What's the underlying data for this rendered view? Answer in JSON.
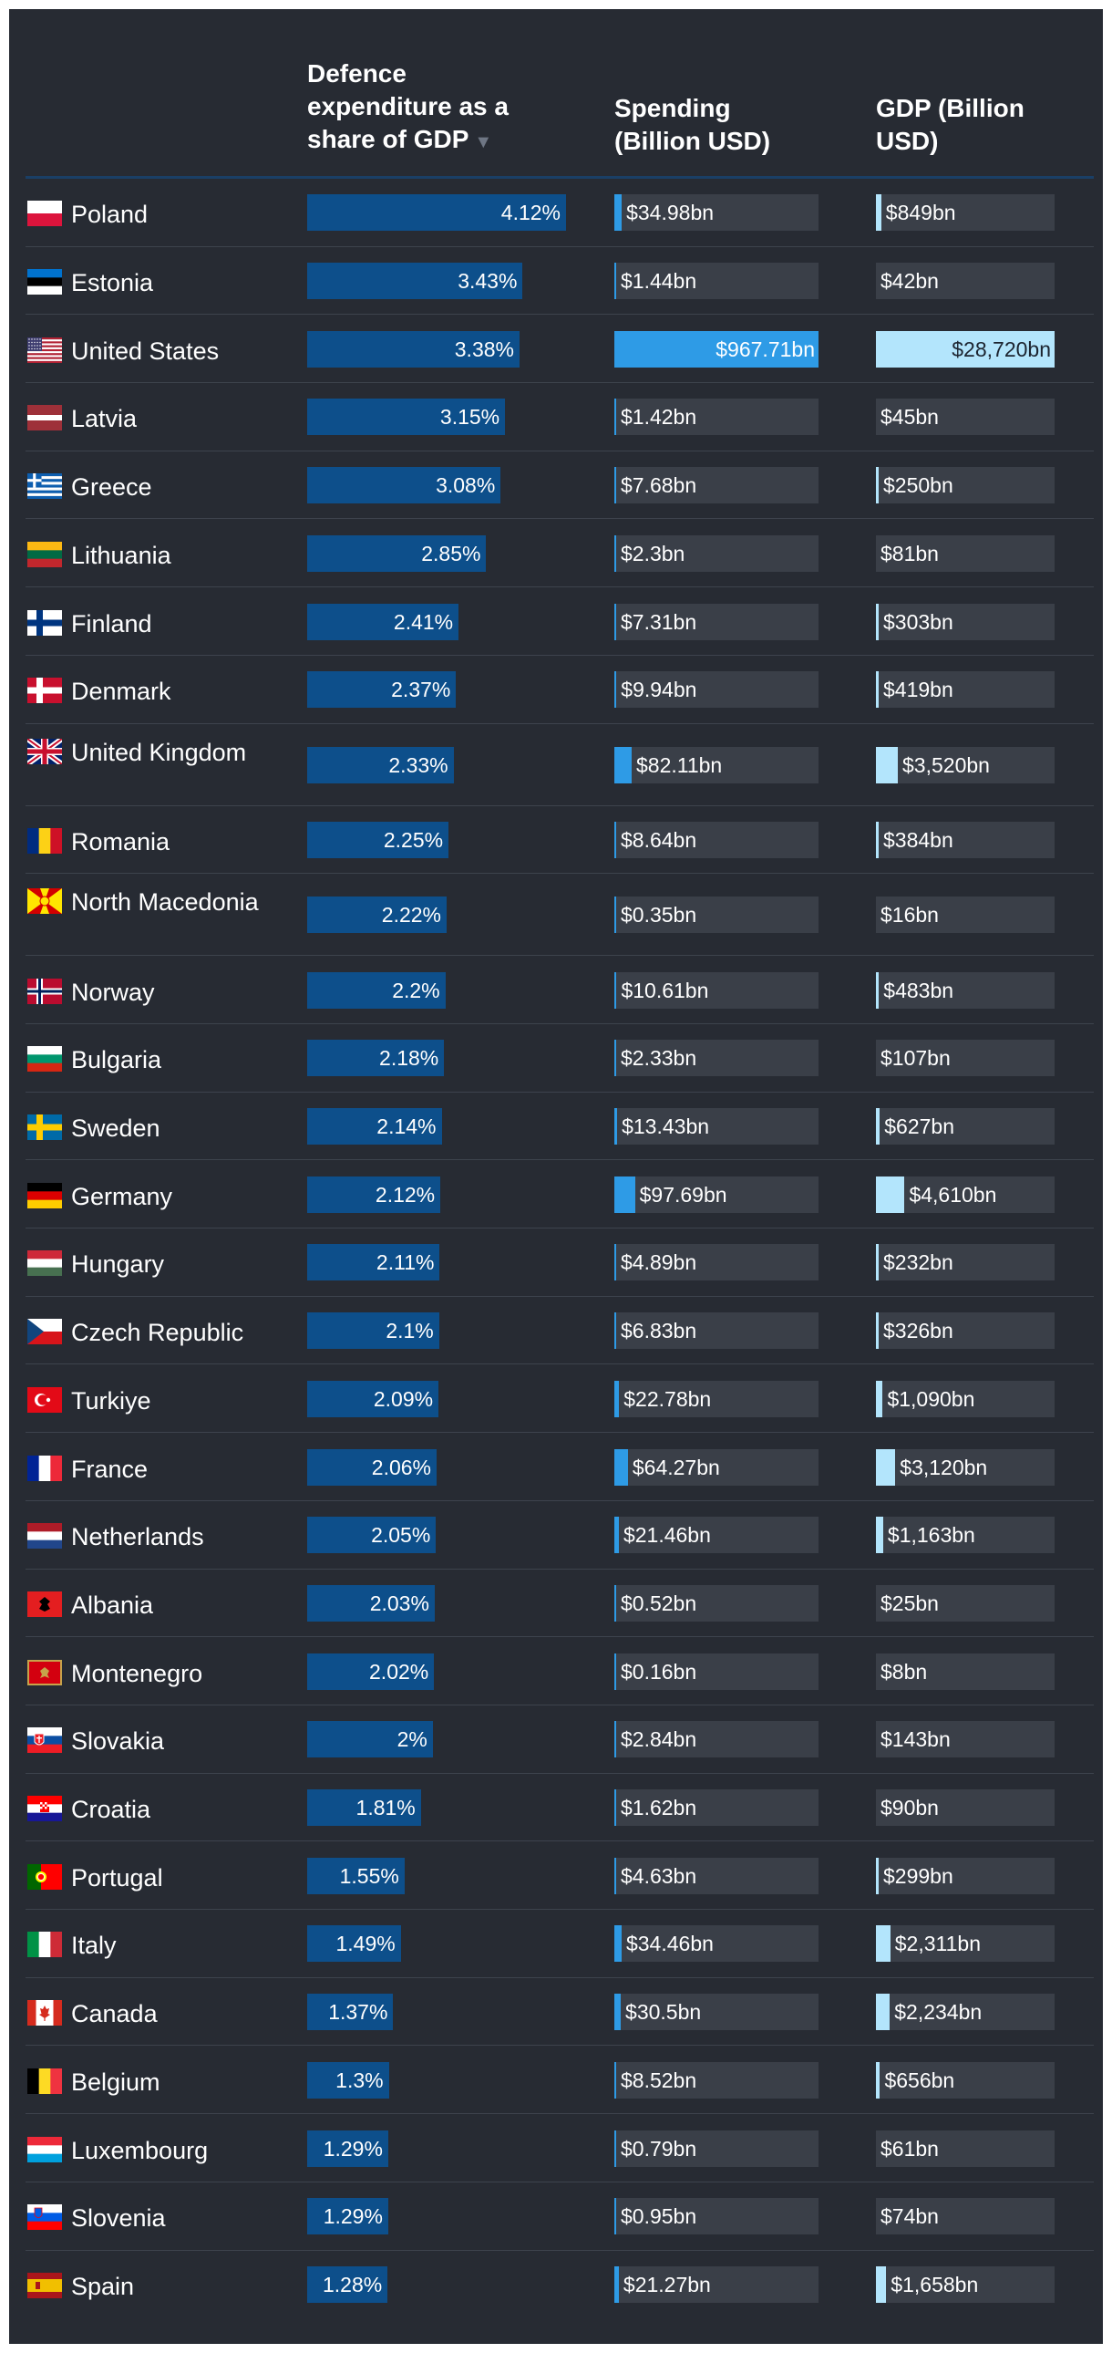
{
  "headers": {
    "gdp_share": "Defence expenditure as a share of GDP",
    "sort_icon": "sort-descending-icon",
    "spending": "Spending (Billion USD)",
    "gdp": "GDP (Billion USD)"
  },
  "colors": {
    "background": "#272b33",
    "share_bar": "#0d4f8b",
    "spending_bar": "#2e9be6",
    "gdp_bar": "#b3e5fc",
    "track": "#3a3f48"
  },
  "chart_data": {
    "type": "table",
    "columns": [
      "Defence expenditure as a share of GDP",
      "Spending (Billion USD)",
      "GDP (Billion USD)"
    ],
    "rows": [
      {
        "country": "Poland",
        "flag": "flag-poland-icon",
        "share_label": "4.12%",
        "share": 4.12,
        "spending_label": "$34.98bn",
        "spending": 34.98,
        "gdp_label": "$849bn",
        "gdp": 849
      },
      {
        "country": "Estonia",
        "flag": "flag-estonia-icon",
        "share_label": "3.43%",
        "share": 3.43,
        "spending_label": "$1.44bn",
        "spending": 1.44,
        "gdp_label": "$42bn",
        "gdp": 42
      },
      {
        "country": "United States",
        "flag": "flag-united-states-icon",
        "share_label": "3.38%",
        "share": 3.38,
        "spending_label": "$967.71bn",
        "spending": 967.71,
        "gdp_label": "$28,720bn",
        "gdp": 28720
      },
      {
        "country": "Latvia",
        "flag": "flag-latvia-icon",
        "share_label": "3.15%",
        "share": 3.15,
        "spending_label": "$1.42bn",
        "spending": 1.42,
        "gdp_label": "$45bn",
        "gdp": 45
      },
      {
        "country": "Greece",
        "flag": "flag-greece-icon",
        "share_label": "3.08%",
        "share": 3.08,
        "spending_label": "$7.68bn",
        "spending": 7.68,
        "gdp_label": "$250bn",
        "gdp": 250
      },
      {
        "country": "Lithuania",
        "flag": "flag-lithuania-icon",
        "share_label": "2.85%",
        "share": 2.85,
        "spending_label": "$2.3bn",
        "spending": 2.3,
        "gdp_label": "$81bn",
        "gdp": 81
      },
      {
        "country": "Finland",
        "flag": "flag-finland-icon",
        "share_label": "2.41%",
        "share": 2.41,
        "spending_label": "$7.31bn",
        "spending": 7.31,
        "gdp_label": "$303bn",
        "gdp": 303
      },
      {
        "country": "Denmark",
        "flag": "flag-denmark-icon",
        "share_label": "2.37%",
        "share": 2.37,
        "spending_label": "$9.94bn",
        "spending": 9.94,
        "gdp_label": "$419bn",
        "gdp": 419
      },
      {
        "country": "United Kingdom",
        "flag": "flag-united-kingdom-icon",
        "share_label": "2.33%",
        "share": 2.33,
        "spending_label": "$82.11bn",
        "spending": 82.11,
        "gdp_label": "$3,520bn",
        "gdp": 3520
      },
      {
        "country": "Romania",
        "flag": "flag-romania-icon",
        "share_label": "2.25%",
        "share": 2.25,
        "spending_label": "$8.64bn",
        "spending": 8.64,
        "gdp_label": "$384bn",
        "gdp": 384
      },
      {
        "country": "North Macedonia",
        "flag": "flag-north-macedonia-icon",
        "share_label": "2.22%",
        "share": 2.22,
        "spending_label": "$0.35bn",
        "spending": 0.35,
        "gdp_label": "$16bn",
        "gdp": 16
      },
      {
        "country": "Norway",
        "flag": "flag-norway-icon",
        "share_label": "2.2%",
        "share": 2.2,
        "spending_label": "$10.61bn",
        "spending": 10.61,
        "gdp_label": "$483bn",
        "gdp": 483
      },
      {
        "country": "Bulgaria",
        "flag": "flag-bulgaria-icon",
        "share_label": "2.18%",
        "share": 2.18,
        "spending_label": "$2.33bn",
        "spending": 2.33,
        "gdp_label": "$107bn",
        "gdp": 107
      },
      {
        "country": "Sweden",
        "flag": "flag-sweden-icon",
        "share_label": "2.14%",
        "share": 2.14,
        "spending_label": "$13.43bn",
        "spending": 13.43,
        "gdp_label": "$627bn",
        "gdp": 627
      },
      {
        "country": "Germany",
        "flag": "flag-germany-icon",
        "share_label": "2.12%",
        "share": 2.12,
        "spending_label": "$97.69bn",
        "spending": 97.69,
        "gdp_label": "$4,610bn",
        "gdp": 4610
      },
      {
        "country": "Hungary",
        "flag": "flag-hungary-icon",
        "share_label": "2.11%",
        "share": 2.11,
        "spending_label": "$4.89bn",
        "spending": 4.89,
        "gdp_label": "$232bn",
        "gdp": 232
      },
      {
        "country": "Czech Republic",
        "flag": "flag-czech-republic-icon",
        "share_label": "2.1%",
        "share": 2.1,
        "spending_label": "$6.83bn",
        "spending": 6.83,
        "gdp_label": "$326bn",
        "gdp": 326
      },
      {
        "country": "Turkiye",
        "flag": "flag-turkiye-icon",
        "share_label": "2.09%",
        "share": 2.09,
        "spending_label": "$22.78bn",
        "spending": 22.78,
        "gdp_label": "$1,090bn",
        "gdp": 1090
      },
      {
        "country": "France",
        "flag": "flag-france-icon",
        "share_label": "2.06%",
        "share": 2.06,
        "spending_label": "$64.27bn",
        "spending": 64.27,
        "gdp_label": "$3,120bn",
        "gdp": 3120
      },
      {
        "country": "Netherlands",
        "flag": "flag-netherlands-icon",
        "share_label": "2.05%",
        "share": 2.05,
        "spending_label": "$21.46bn",
        "spending": 21.46,
        "gdp_label": "$1,163bn",
        "gdp": 1163
      },
      {
        "country": "Albania",
        "flag": "flag-albania-icon",
        "share_label": "2.03%",
        "share": 2.03,
        "spending_label": "$0.52bn",
        "spending": 0.52,
        "gdp_label": "$25bn",
        "gdp": 25
      },
      {
        "country": "Montenegro",
        "flag": "flag-montenegro-icon",
        "share_label": "2.02%",
        "share": 2.02,
        "spending_label": "$0.16bn",
        "spending": 0.16,
        "gdp_label": "$8bn",
        "gdp": 8
      },
      {
        "country": "Slovakia",
        "flag": "flag-slovakia-icon",
        "share_label": "2%",
        "share": 2.0,
        "spending_label": "$2.84bn",
        "spending": 2.84,
        "gdp_label": "$143bn",
        "gdp": 143
      },
      {
        "country": "Croatia",
        "flag": "flag-croatia-icon",
        "share_label": "1.81%",
        "share": 1.81,
        "spending_label": "$1.62bn",
        "spending": 1.62,
        "gdp_label": "$90bn",
        "gdp": 90
      },
      {
        "country": "Portugal",
        "flag": "flag-portugal-icon",
        "share_label": "1.55%",
        "share": 1.55,
        "spending_label": "$4.63bn",
        "spending": 4.63,
        "gdp_label": "$299bn",
        "gdp": 299
      },
      {
        "country": "Italy",
        "flag": "flag-italy-icon",
        "share_label": "1.49%",
        "share": 1.49,
        "spending_label": "$34.46bn",
        "spending": 34.46,
        "gdp_label": "$2,311bn",
        "gdp": 2311
      },
      {
        "country": "Canada",
        "flag": "flag-canada-icon",
        "share_label": "1.37%",
        "share": 1.37,
        "spending_label": "$30.5bn",
        "spending": 30.5,
        "gdp_label": "$2,234bn",
        "gdp": 2234
      },
      {
        "country": "Belgium",
        "flag": "flag-belgium-icon",
        "share_label": "1.3%",
        "share": 1.3,
        "spending_label": "$8.52bn",
        "spending": 8.52,
        "gdp_label": "$656bn",
        "gdp": 656
      },
      {
        "country": "Luxembourg",
        "flag": "flag-luxembourg-icon",
        "share_label": "1.29%",
        "share": 1.29,
        "spending_label": "$0.79bn",
        "spending": 0.79,
        "gdp_label": "$61bn",
        "gdp": 61
      },
      {
        "country": "Slovenia",
        "flag": "flag-slovenia-icon",
        "share_label": "1.29%",
        "share": 1.29,
        "spending_label": "$0.95bn",
        "spending": 0.95,
        "gdp_label": "$74bn",
        "gdp": 74
      },
      {
        "country": "Spain",
        "flag": "flag-spain-icon",
        "share_label": "1.28%",
        "share": 1.28,
        "spending_label": "$21.27bn",
        "spending": 21.27,
        "gdp_label": "$1,658bn",
        "gdp": 1658
      }
    ]
  }
}
